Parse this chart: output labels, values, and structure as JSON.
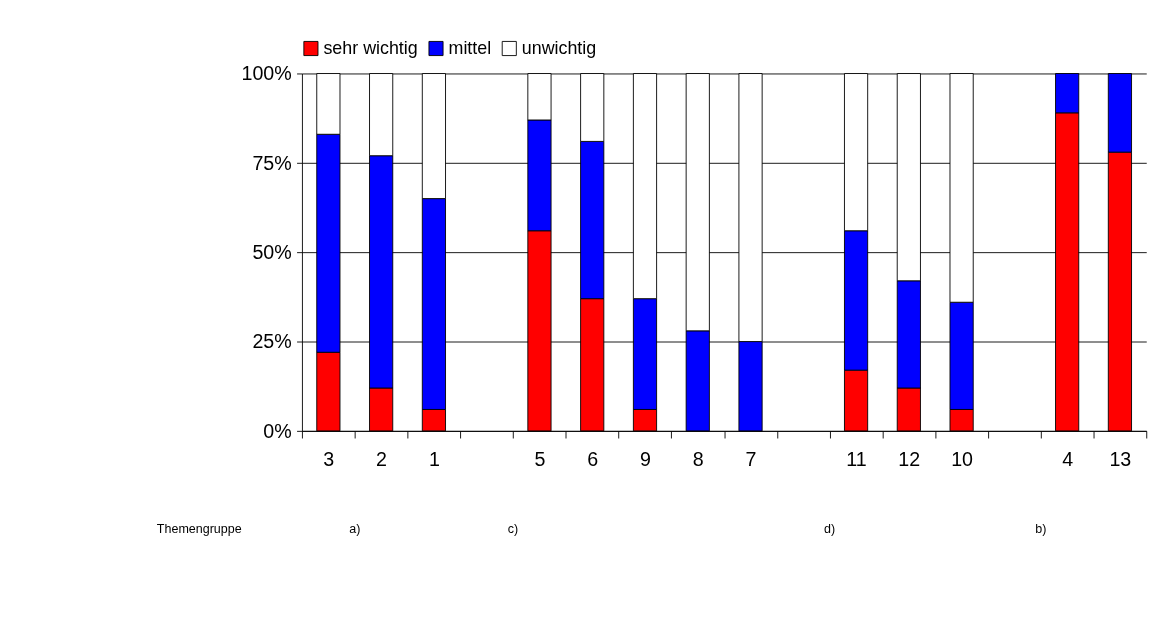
{
  "chart_data": {
    "type": "bar",
    "stacked": true,
    "categories": [
      "3",
      "2",
      "1",
      null,
      "5",
      "6",
      "9",
      "8",
      "7",
      null,
      "11",
      "12",
      "10",
      null,
      "4",
      "13"
    ],
    "series": [
      {
        "name": "sehr wichtig",
        "color": "#ff0000",
        "values": [
          22,
          12,
          6,
          null,
          56,
          37,
          6,
          null,
          null,
          null,
          17,
          12,
          6,
          null,
          89,
          78
        ]
      },
      {
        "name": "mittel",
        "color": "#0000ff",
        "values": [
          61,
          65,
          59,
          null,
          31,
          44,
          31,
          28,
          25,
          null,
          39,
          30,
          30,
          null,
          11,
          22
        ]
      },
      {
        "name": "unwichtig",
        "color": "#ffffff",
        "values": [
          17,
          23,
          35,
          null,
          13,
          19,
          63,
          72,
          75,
          null,
          44,
          58,
          64,
          null,
          null,
          null
        ]
      }
    ],
    "ylim": [
      0,
      100
    ],
    "yticks": [
      {
        "value": 0,
        "label": "0%"
      },
      {
        "value": 25,
        "label": "25%"
      },
      {
        "value": 50,
        "label": "50%"
      },
      {
        "value": 75,
        "label": "75%"
      },
      {
        "value": 100,
        "label": "100%"
      }
    ],
    "grid": "y",
    "legend": "top",
    "annotations": [
      "Themengruppe",
      "a)",
      "c)",
      "d)",
      "b)"
    ]
  }
}
